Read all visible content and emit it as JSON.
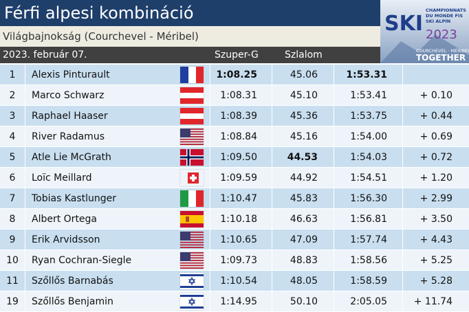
{
  "header": {
    "title": "Férfi alpesi kombináció",
    "subtitle": "Világbajnokság (Courchevel - Méribel)",
    "date": "2023. február 07.",
    "columns": [
      "Szuper-G",
      "Szlalom"
    ]
  },
  "logo": {
    "mark": "SKI",
    "lines": [
      "CHAMPIONNATS",
      "DU MONDE FIS",
      "SKI ALPIN"
    ],
    "year": "2023",
    "place": "COURCHEVEL · MÉRIBEL",
    "motto": "TOGETHER"
  },
  "table": {
    "rows": [
      [
        "1",
        "Alexis Pinturault",
        "1:08.25",
        "45.06",
        "1:53.31",
        null
      ],
      [
        "2",
        "Marco Schwarz",
        "1:08.31",
        "45.10",
        "1:53.41",
        "+ 0.10"
      ],
      [
        "3",
        "Raphael Haaser",
        "1:08.39",
        "45.36",
        "1:53.75",
        "+ 0.44"
      ],
      [
        "4",
        "River Radamus",
        "1:08.84",
        "45.16",
        "1:54.00",
        "+ 0.69"
      ],
      [
        "5",
        "Atle Lie McGrath",
        "1:09.50",
        "44.53",
        "1:54.03",
        "+ 0.72"
      ],
      [
        "6",
        "Loïc Meillard",
        "1:09.59",
        "44.92",
        "1:54.51",
        "+ 1.20"
      ],
      [
        "7",
        "Tobias Kastlunger",
        "1:10.47",
        "45.83",
        "1:56.30",
        "+ 2.99"
      ],
      [
        "8",
        "Albert Ortega",
        "1:10.18",
        "46.63",
        "1:56.81",
        "+ 3.50"
      ],
      [
        "9",
        "Erik Arvidsson",
        "1:10.65",
        "47.09",
        "1:57.74",
        "+ 4.43"
      ],
      [
        "10",
        "Ryan Cochran-Siegle",
        "1:09.73",
        "48.83",
        "1:58.56",
        "+ 5.25"
      ],
      [
        "11",
        "Szőllős Barnabás",
        "1:10.54",
        "48.05",
        "1:58.59",
        "+ 5.28"
      ],
      [
        "19",
        "Szőllős Benjamin",
        "1:14.95",
        "50.10",
        "2:05.05",
        "+ 11.74"
      ]
    ]
  }
}
